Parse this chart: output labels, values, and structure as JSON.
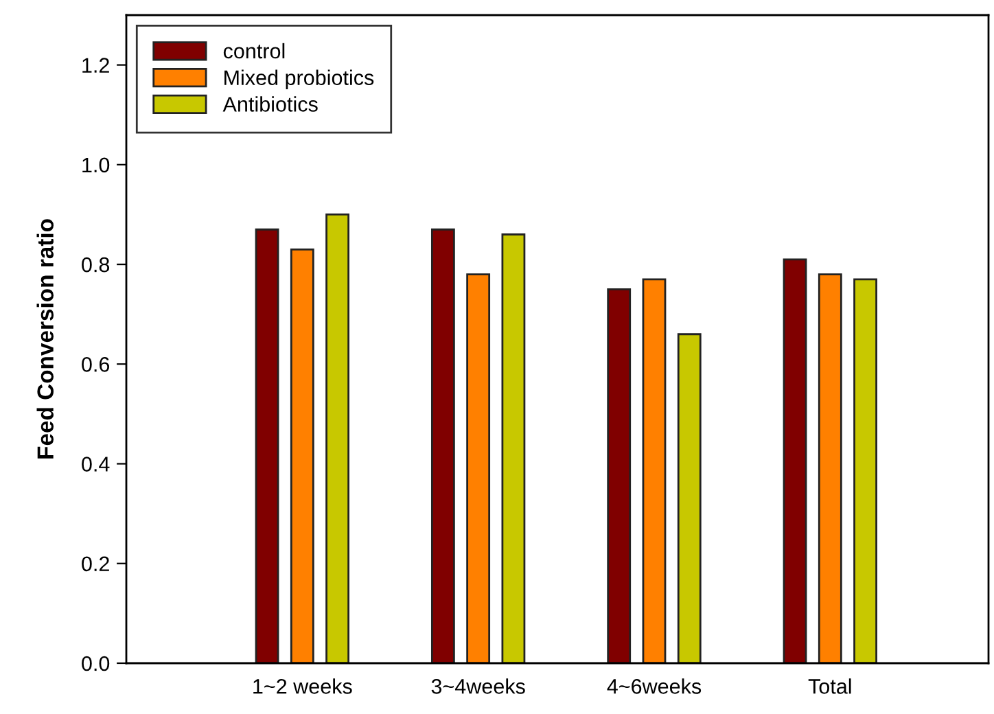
{
  "chart_data": {
    "type": "bar",
    "ylabel": "Feed Conversion ratio",
    "categories": [
      "1~2 weeks",
      "3~4weeks",
      "4~6weeks",
      "Total"
    ],
    "series": [
      {
        "name": "control",
        "color": "#800000",
        "values": [
          0.87,
          0.87,
          0.75,
          0.81
        ]
      },
      {
        "name": "Mixed probiotics",
        "color": "#ff8000",
        "values": [
          0.83,
          0.78,
          0.77,
          0.78
        ]
      },
      {
        "name": "Antibiotics",
        "color": "#c8c800",
        "values": [
          0.9,
          0.86,
          0.66,
          0.77
        ]
      }
    ],
    "ylim": [
      0,
      1.3
    ],
    "yticks": [
      {
        "value": 0,
        "label": "0.0"
      },
      {
        "value": 0.2,
        "label": "0.2"
      },
      {
        "value": 0.4,
        "label": "0.4"
      },
      {
        "value": 0.6,
        "label": "0.6"
      },
      {
        "value": 0.8,
        "label": "0.8"
      },
      {
        "value": 1.0,
        "label": "1.0"
      },
      {
        "value": 1.2,
        "label": "1.2"
      }
    ],
    "grid": false,
    "legend": "top left"
  }
}
